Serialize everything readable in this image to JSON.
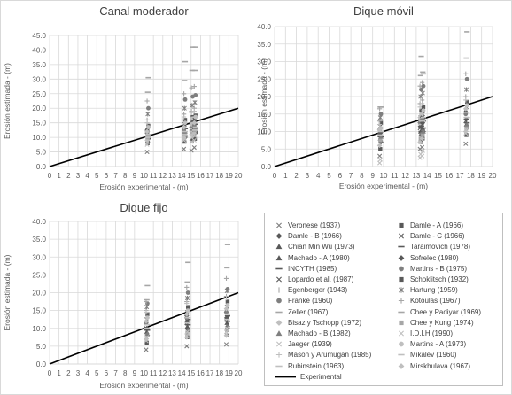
{
  "chart_data": [
    {
      "type": "scatter",
      "title": "Canal moderador",
      "xlabel": "Erosión experimental - (m)",
      "ylabel": "Erosión estimada - (m)",
      "xlim": [
        0,
        20
      ],
      "ylim": [
        0,
        45
      ],
      "xticks": [
        "0",
        "1",
        "2",
        "3",
        "4",
        "5",
        "6",
        "7",
        "8",
        "9",
        "10",
        "11",
        "12",
        "13",
        "14",
        "15",
        "16",
        "17",
        "18",
        "19",
        "20"
      ],
      "yticks": [
        "0.0",
        "5.0",
        "10.0",
        "15.0",
        "20.0",
        "25.0",
        "30.0",
        "35.0",
        "40.0",
        "45.0"
      ],
      "grid": true,
      "x_groups": [
        10.4,
        14.3,
        15.1,
        15.4
      ],
      "estimates": [
        [
          5.0,
          8.0,
          10.0,
          12.0,
          9.0,
          11.0,
          13.0,
          10.5,
          9.5,
          11.5,
          12.5,
          14.0,
          16.0,
          18.0,
          20.0,
          22.5,
          25.5,
          30.5,
          9.0,
          10.0,
          11.0,
          7.5,
          8.5,
          13.5,
          15.0,
          10.0,
          11.0,
          12.0
        ],
        [
          6.0,
          8.5,
          10.0,
          12.0,
          11.0,
          13.0,
          14.0,
          11.5,
          10.5,
          12.5,
          14.5,
          16.0,
          18.0,
          20.0,
          23.0,
          25.0,
          29.5,
          36.0,
          10.0,
          11.0,
          12.0,
          9.0,
          9.5,
          15.0,
          17.0,
          11.0,
          12.0,
          13.5
        ],
        [
          5.5,
          9.0,
          11.0,
          13.0,
          12.0,
          14.0,
          15.0,
          12.5,
          11.5,
          13.5,
          15.5,
          17.0,
          19.0,
          21.0,
          24.0,
          27.0,
          33.0,
          41.0,
          11.0,
          12.0,
          13.0,
          8.5,
          10.0,
          16.5,
          18.5,
          12.0,
          13.0,
          14.5
        ],
        [
          6.5,
          9.5,
          11.5,
          13.5,
          12.5,
          14.5,
          16.0,
          13.0,
          12.0,
          14.0,
          16.0,
          17.5,
          20.0,
          22.0,
          24.5,
          27.5,
          33.0,
          41.0,
          11.5,
          12.5,
          13.5,
          9.0,
          10.5,
          17.0,
          19.0,
          12.5,
          13.5,
          15.0
        ]
      ],
      "experimental_line": {
        "x": [
          0,
          20
        ],
        "y": [
          0,
          20
        ]
      }
    },
    {
      "type": "scatter",
      "title": "Dique móvil",
      "xlabel": "Erosión experimental - (m)",
      "ylabel": "Erosión estimada - (m)",
      "xlim": [
        0,
        20
      ],
      "ylim": [
        0,
        40
      ],
      "xticks": [
        "0",
        "1",
        "2",
        "3",
        "4",
        "5",
        "6",
        "7",
        "8",
        "9",
        "10",
        "11",
        "12",
        "13",
        "14",
        "15",
        "16",
        "17",
        "18",
        "19",
        "20"
      ],
      "yticks": [
        "0.0",
        "5.0",
        "10.0",
        "15.0",
        "20.0",
        "25.0",
        "30.0",
        "35.0",
        "40.0"
      ],
      "grid": true,
      "x_groups": [
        9.7,
        13.4,
        13.6,
        17.6
      ],
      "estimates": [
        [
          3.0,
          5.0,
          7.0,
          9.0,
          8.0,
          10.0,
          11.0,
          9.5,
          8.5,
          10.5,
          11.5,
          12.5,
          13.0,
          14.0,
          15.0,
          16.5,
          17.0,
          17.0,
          6.0,
          7.5,
          8.5,
          1.0,
          2.0,
          11.0,
          12.0,
          9.0,
          10.0,
          10.5
        ],
        [
          5.0,
          7.0,
          9.0,
          11.0,
          10.0,
          12.0,
          13.0,
          11.5,
          10.0,
          12.5,
          14.0,
          16.0,
          18.0,
          20.0,
          22.0,
          23.0,
          26.0,
          31.5,
          7.0,
          8.0,
          9.5,
          2.5,
          3.5,
          15.0,
          17.0,
          12.0,
          13.0,
          14.0
        ],
        [
          5.5,
          8.0,
          10.0,
          12.0,
          11.0,
          13.0,
          14.5,
          12.5,
          11.0,
          13.5,
          15.0,
          17.0,
          19.0,
          21.0,
          23.0,
          24.0,
          27.0,
          26.5,
          8.0,
          9.0,
          10.0,
          3.0,
          4.5,
          16.0,
          18.0,
          13.0,
          14.0,
          15.0
        ],
        [
          6.5,
          9.0,
          11.0,
          13.0,
          12.0,
          14.0,
          16.0,
          13.5,
          12.5,
          15.0,
          17.0,
          18.5,
          20.0,
          22.0,
          25.0,
          26.5,
          31.0,
          38.5,
          10.0,
          11.0,
          12.0,
          9.5,
          10.5,
          17.5,
          19.0,
          14.0,
          15.5,
          16.5
        ]
      ],
      "experimental_line": {
        "x": [
          0,
          20
        ],
        "y": [
          0,
          20
        ]
      }
    },
    {
      "type": "scatter",
      "title": "Dique fijo",
      "xlabel": "Erosión experimental - (m)",
      "ylabel": "Erosión estimada - (m)",
      "xlim": [
        0,
        20
      ],
      "ylim": [
        0,
        40
      ],
      "xticks": [
        "0",
        "1",
        "2",
        "3",
        "4",
        "5",
        "6",
        "7",
        "8",
        "9",
        "10",
        "11",
        "12",
        "13",
        "14",
        "15",
        "16",
        "17",
        "18",
        "19",
        "20"
      ],
      "yticks": [
        "0.0",
        "5.0",
        "10.0",
        "15.0",
        "20.0",
        "25.0",
        "30.0",
        "35.0",
        "40.0"
      ],
      "grid": true,
      "x_groups": [
        10.3,
        14.6,
        18.8
      ],
      "estimates": [
        [
          4.0,
          6.0,
          8.0,
          10.0,
          9.0,
          11.0,
          12.0,
          10.0,
          9.5,
          11.5,
          12.5,
          14.0,
          15.0,
          16.0,
          17.0,
          17.5,
          18.0,
          22.0,
          7.0,
          8.0,
          8.5,
          6.5,
          7.5,
          13.0,
          14.5,
          10.0,
          11.0,
          12.0
        ],
        [
          5.0,
          7.5,
          9.5,
          11.5,
          10.5,
          12.5,
          14.0,
          12.0,
          11.0,
          13.0,
          14.5,
          16.0,
          17.5,
          18.5,
          20.0,
          21.5,
          23.0,
          28.5,
          7.5,
          8.5,
          9.5,
          8.0,
          9.0,
          15.0,
          17.0,
          11.5,
          13.0,
          14.0
        ],
        [
          5.5,
          8.0,
          10.5,
          12.5,
          11.5,
          13.5,
          15.0,
          13.0,
          12.0,
          14.5,
          16.0,
          17.5,
          19.0,
          20.5,
          21.0,
          24.0,
          27.0,
          33.5,
          8.0,
          9.5,
          10.5,
          9.0,
          10.0,
          16.5,
          18.5,
          12.5,
          14.0,
          15.5
        ]
      ],
      "experimental_line": {
        "x": [
          0,
          20
        ],
        "y": [
          0,
          20
        ]
      }
    }
  ],
  "legend": {
    "entries": [
      {
        "label": "Veronese (1937)",
        "marker": "x"
      },
      {
        "label": "Damle - A (1966)",
        "marker": "square"
      },
      {
        "label": "Damle - B (1966)",
        "marker": "diamond"
      },
      {
        "label": "Damle - C (1966)",
        "marker": "x"
      },
      {
        "label": "Chian Min Wu (1973)",
        "marker": "triangle"
      },
      {
        "label": "Taraimovich (1978)",
        "marker": "dash"
      },
      {
        "label": "Machado - A (1980)",
        "marker": "triangle"
      },
      {
        "label": "Sofrelec (1980)",
        "marker": "diamond"
      },
      {
        "label": "INCYTH (1985)",
        "marker": "dash"
      },
      {
        "label": "Martins - B (1975)",
        "marker": "circle"
      },
      {
        "label": "Lopardo et al. (1987)",
        "marker": "x"
      },
      {
        "label": "Schoklitsch (1932)",
        "marker": "square"
      },
      {
        "label": "Egenberger (1943)",
        "marker": "plus"
      },
      {
        "label": "Hartung (1959)",
        "marker": "asterisk"
      },
      {
        "label": "Franke (1960)",
        "marker": "circle"
      },
      {
        "label": "Kotoulas (1967)",
        "marker": "plus"
      },
      {
        "label": "Zeller (1967)",
        "marker": "dash"
      },
      {
        "label": "Chee y Padiyar (1969)",
        "marker": "dash"
      },
      {
        "label": "Bisaz y Tschopp (1972)",
        "marker": "diamond"
      },
      {
        "label": "Chee y Kung (1974)",
        "marker": "square"
      },
      {
        "label": "Machado - B (1982)",
        "marker": "triangle"
      },
      {
        "label": "I.D.I.H (1990)",
        "marker": "x"
      },
      {
        "label": "Jaeger (1939)",
        "marker": "x"
      },
      {
        "label": "Martins - A (1973)",
        "marker": "circle"
      },
      {
        "label": "Mason y Arumugan (1985)",
        "marker": "plus"
      },
      {
        "label": "Mikalev (1960)",
        "marker": "dash"
      },
      {
        "label": "Rubinstein (1963)",
        "marker": "dash"
      },
      {
        "label": "Mirskhulava (1967)",
        "marker": "diamond"
      },
      {
        "label": "Experimental",
        "marker": "line"
      }
    ]
  },
  "colors": {
    "axis_text": "#595959",
    "gridline": "#d9d9d9",
    "experimental_line": "#000000",
    "marker_dark": "#595959",
    "marker_mid": "#7f7f7f",
    "marker_light": "#a6a6a6",
    "marker_lighter": "#bfbfbf"
  }
}
